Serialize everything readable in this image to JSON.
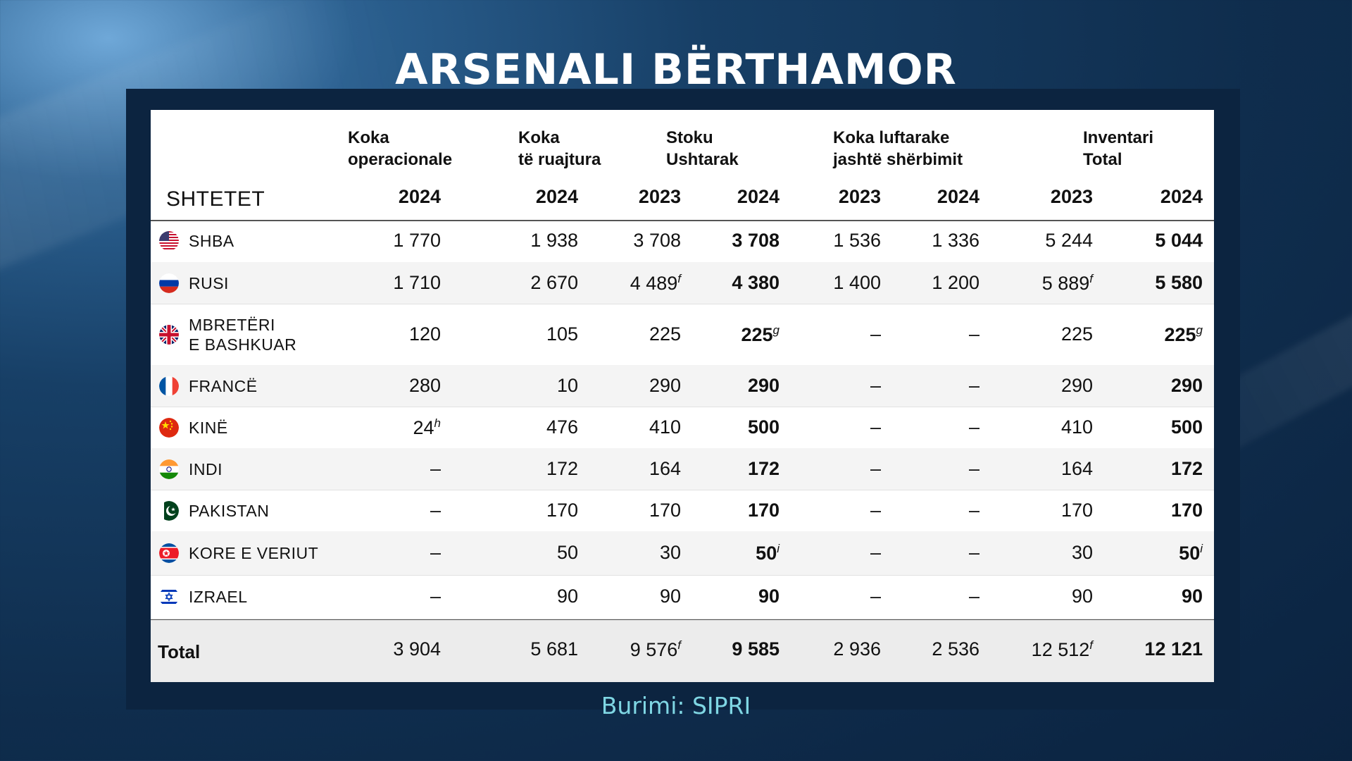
{
  "title": "ARSENALI BËRTHAMOR",
  "source": "Burimi: SIPRI",
  "colors": {
    "accent_source": "#7fd6e3",
    "frame": "#0c2440",
    "title": "#ffffff"
  },
  "chart_data": {
    "type": "table",
    "title": "ARSENALI BËRTHAMOR",
    "row_header": "SHTETET",
    "column_groups": [
      {
        "label_lines": [
          "Koka",
          "operacionale"
        ],
        "years": [
          "2024"
        ]
      },
      {
        "label_lines": [
          "Koka",
          "të ruajtura"
        ],
        "years": [
          "2024"
        ]
      },
      {
        "label_lines": [
          "Stoku",
          "Ushtarak"
        ],
        "years": [
          "2023",
          "2024"
        ]
      },
      {
        "label_lines": [
          "Koka luftarake",
          "jashtë shërbimit"
        ],
        "years": [
          "2023",
          "2024"
        ]
      },
      {
        "label_lines": [
          "Inventari",
          "Total"
        ],
        "years": [
          "2023",
          "2024"
        ]
      }
    ],
    "rows": [
      {
        "country": [
          "SHBA"
        ],
        "flag": "usa-flag-icon",
        "values": [
          "1 770",
          "1 938",
          "3 708",
          "3 708",
          "1 536",
          "1 336",
          "5 244",
          "5 044"
        ],
        "notes": [
          "",
          "",
          "",
          "",
          "",
          "",
          "",
          ""
        ]
      },
      {
        "country": [
          "RUSI"
        ],
        "flag": "russia-flag-icon",
        "values": [
          "1 710",
          "2 670",
          "4 489",
          "4 380",
          "1 400",
          "1 200",
          "5 889",
          "5 580"
        ],
        "notes": [
          "",
          "",
          "f",
          "",
          "",
          "",
          "f",
          ""
        ]
      },
      {
        "country": [
          "MBRETËRI",
          "E BASHKUAR"
        ],
        "flag": "uk-flag-icon",
        "values": [
          "120",
          "105",
          "225",
          "225",
          "–",
          "–",
          "225",
          "225"
        ],
        "notes": [
          "",
          "",
          "",
          "g",
          "",
          "",
          "",
          "g"
        ]
      },
      {
        "country": [
          "FRANCË"
        ],
        "flag": "france-flag-icon",
        "values": [
          "280",
          "10",
          "290",
          "290",
          "–",
          "–",
          "290",
          "290"
        ],
        "notes": [
          "",
          "",
          "",
          "",
          "",
          "",
          "",
          ""
        ]
      },
      {
        "country": [
          "KINË"
        ],
        "flag": "china-flag-icon",
        "values": [
          "24",
          "476",
          "410",
          "500",
          "–",
          "–",
          "410",
          "500"
        ],
        "notes": [
          "h",
          "",
          "",
          "",
          "",
          "",
          "",
          ""
        ]
      },
      {
        "country": [
          "INDI"
        ],
        "flag": "india-flag-icon",
        "values": [
          "–",
          "172",
          "164",
          "172",
          "–",
          "–",
          "164",
          "172"
        ],
        "notes": [
          "",
          "",
          "",
          "",
          "",
          "",
          "",
          ""
        ]
      },
      {
        "country": [
          "PAKISTAN"
        ],
        "flag": "pakistan-flag-icon",
        "values": [
          "–",
          "170",
          "170",
          "170",
          "–",
          "–",
          "170",
          "170"
        ],
        "notes": [
          "",
          "",
          "",
          "",
          "",
          "",
          "",
          ""
        ]
      },
      {
        "country": [
          "KORE E VERIUT"
        ],
        "flag": "north-korea-flag-icon",
        "values": [
          "–",
          "50",
          "30",
          "50",
          "–",
          "–",
          "30",
          "50"
        ],
        "notes": [
          "",
          "",
          "",
          "i",
          "",
          "",
          "",
          "i"
        ]
      },
      {
        "country": [
          "IZRAEL"
        ],
        "flag": "israel-flag-icon",
        "values": [
          "–",
          "90",
          "90",
          "90",
          "–",
          "–",
          "90",
          "90"
        ],
        "notes": [
          "",
          "",
          "",
          "",
          "",
          "",
          "",
          ""
        ]
      }
    ],
    "total": {
      "label": "Total",
      "values": [
        "3 904",
        "5 681",
        "9 576",
        "9 585",
        "2 936",
        "2 536",
        "12 512",
        "12 121"
      ],
      "notes": [
        "",
        "",
        "f",
        "",
        "",
        "",
        "f",
        ""
      ]
    }
  }
}
